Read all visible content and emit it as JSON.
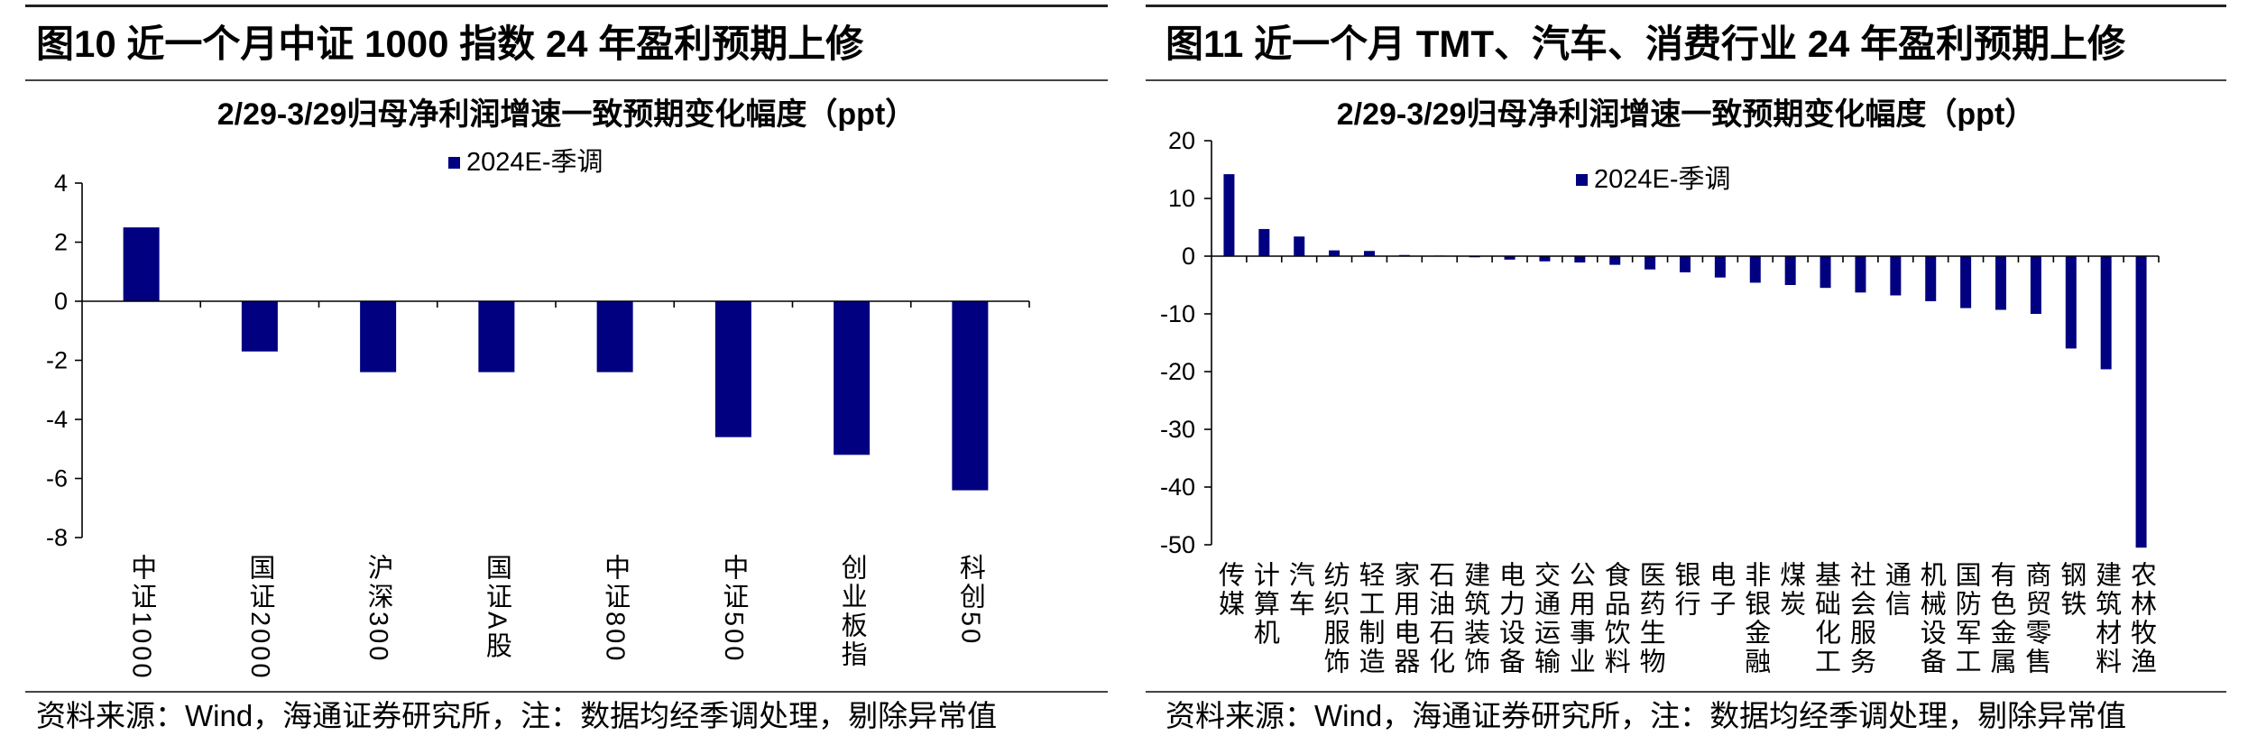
{
  "panels": [
    {
      "figure_title": "图10 近一个月中证 1000 指数 24 年盈利预期上修",
      "source": "资料来源：Wind，海通证券研究所，注：数据均经季调处理，剔除异常值"
    },
    {
      "figure_title": "图11 近一个月 TMT、汽车、消费行业 24 年盈利预期上修",
      "source": "资料来源：Wind，海通证券研究所，注：数据均经季调处理，剔除异常值"
    }
  ],
  "chart_data": [
    {
      "type": "bar",
      "title": "2/29-3/29归母净利润增速一致预期变化幅度（ppt）",
      "categories": [
        "中证1000",
        "国证2000",
        "沪深300",
        "国证A股",
        "中证800",
        "中证500",
        "创业板指",
        "科创50"
      ],
      "series": [
        {
          "name": "2024E-季调",
          "values": [
            2.5,
            -1.7,
            -2.4,
            -2.4,
            -2.4,
            -4.6,
            -5.2,
            -6.4
          ]
        }
      ],
      "ylim": [
        -8,
        4
      ],
      "yticks": [
        4,
        2,
        0,
        -2,
        -4,
        -6,
        -8
      ],
      "grid": false,
      "legend": "top-center",
      "color": "#000080"
    },
    {
      "type": "bar",
      "title": "2/29-3/29归母净利润增速一致预期变化幅度（ppt）",
      "categories": [
        "传媒",
        "计算机",
        "汽车",
        "纺织服饰",
        "轻工制造",
        "家用电器",
        "石油石化",
        "建筑装饰",
        "电力设备",
        "交通运输",
        "公用事业",
        "食品饮料",
        "医药生物",
        "银行",
        "电子",
        "非银金融",
        "煤炭",
        "基础化工",
        "社会服务",
        "通信",
        "机械设备",
        "国防军工",
        "有色金属",
        "商贸零售",
        "钢铁",
        "建筑材料",
        "农林牧渔"
      ],
      "series": [
        {
          "name": "2024E-季调",
          "values": [
            14.2,
            4.7,
            3.4,
            1.0,
            0.9,
            0.2,
            0.1,
            -0.2,
            -0.6,
            -0.9,
            -1.1,
            -1.5,
            -2.3,
            -2.8,
            -3.7,
            -4.6,
            -5.0,
            -5.5,
            -6.3,
            -6.8,
            -7.8,
            -9.0,
            -9.3,
            -10.0,
            -16.0,
            -19.6,
            -50.5
          ]
        }
      ],
      "ylim": [
        -50,
        20
      ],
      "yticks": [
        20,
        10,
        0,
        -10,
        -20,
        -30,
        -40,
        -50
      ],
      "grid": false,
      "legend": "top-center",
      "color": "#000080"
    }
  ]
}
